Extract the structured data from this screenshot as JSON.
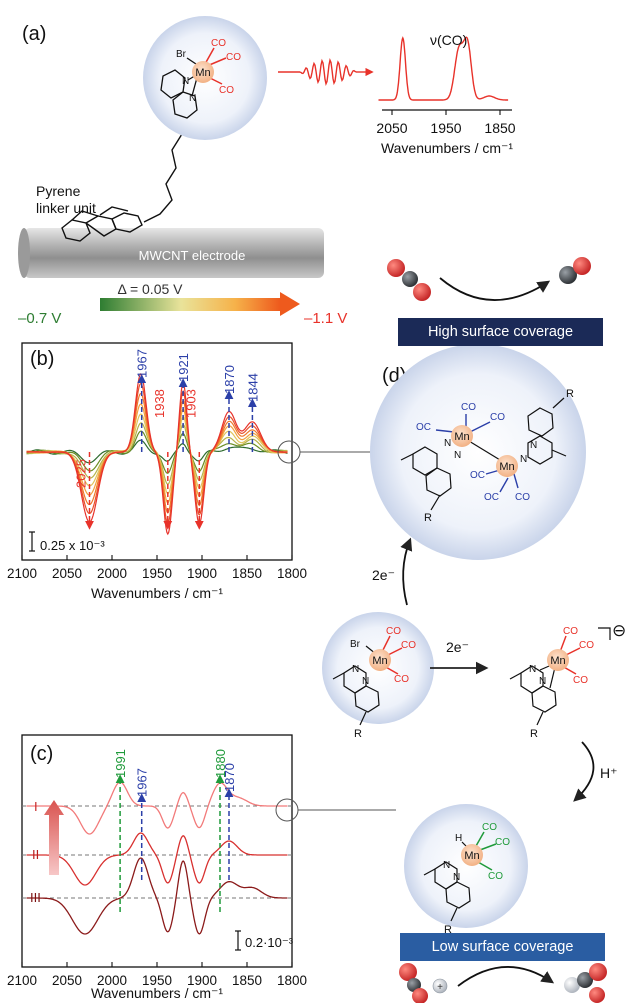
{
  "panels": {
    "a": {
      "label": "(a)",
      "linker_text_1": "Pyrene",
      "linker_text_2": "linker unit",
      "electrode_text": "MWCNT electrode",
      "spectrum_label": "ν(CO)",
      "xlabel": "Wavenumbers / cm⁻¹",
      "ticks": [
        "2050",
        "1950",
        "1850"
      ]
    },
    "b": {
      "label": "(b)",
      "scale_left": "–0.7 V",
      "scale_mid": "Δ = 0.05 V",
      "scale_right": "–1.1 V",
      "scale_bar": "0.25 x 10⁻³",
      "xlabel": "Wavenumbers / cm⁻¹",
      "ticks": [
        "2100",
        "2050",
        "2000",
        "1950",
        "1900",
        "1850",
        "1800"
      ],
      "peaks": [
        {
          "text": "2025",
          "color": "#e8322a"
        },
        {
          "text": "1967",
          "color": "#2b3fa8"
        },
        {
          "text": "1938",
          "color": "#e8322a"
        },
        {
          "text": "1921",
          "color": "#2b3fa8"
        },
        {
          "text": "1903",
          "color": "#e8322a"
        },
        {
          "text": "1870",
          "color": "#2b3fa8"
        },
        {
          "text": "1844",
          "color": "#2b3fa8"
        }
      ]
    },
    "c": {
      "label": "(c)",
      "trace_labels": [
        "I",
        "II",
        "III"
      ],
      "scale_bar": "0.2·10⁻³",
      "xlabel": "Wavenumbers / cm⁻¹",
      "ticks": [
        "2100",
        "2050",
        "2000",
        "1950",
        "1900",
        "1850",
        "1800"
      ],
      "peaks": [
        {
          "text": "1991",
          "color": "#1f9a3a"
        },
        {
          "text": "1967",
          "color": "#2b3fa8"
        },
        {
          "text": "1880",
          "color": "#1f9a3a"
        },
        {
          "text": "1870",
          "color": "#2b3fa8"
        }
      ]
    },
    "d": {
      "label": "(d)",
      "electrons_up": "2e⁻",
      "electrons_right": "2e⁻",
      "proton": "H⁺",
      "anion_charge": "⊖",
      "banner_high": "High surface coverage",
      "banner_low": "Low surface coverage"
    }
  },
  "chem": {
    "Br": "Br",
    "Mn": "Mn",
    "N": "N",
    "CO": "CO",
    "OC": "OC",
    "R": "R",
    "H": "H"
  },
  "colors": {
    "red": "#e8322a",
    "blue": "#2b3fa8",
    "green": "#1f9a3a",
    "navy": "#1b2a57",
    "steel": "#2a5da2"
  }
}
